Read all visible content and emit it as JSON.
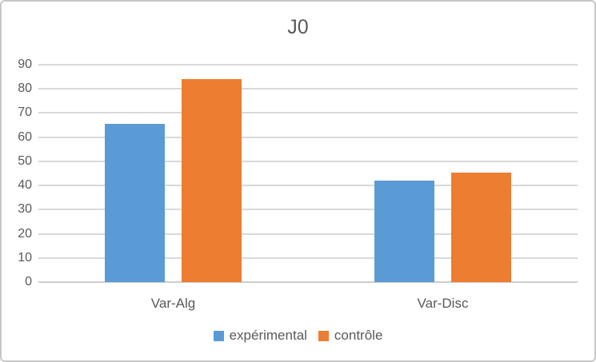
{
  "chart_data": {
    "type": "bar",
    "title": "J0",
    "categories": [
      "Var-Alg",
      "Var-Disc"
    ],
    "series": [
      {
        "name": "expérimental",
        "color": "#5B9BD5",
        "values": [
          65.5,
          42
        ]
      },
      {
        "name": "contrôle",
        "color": "#ED7D31",
        "values": [
          84,
          45.5
        ]
      }
    ],
    "xlabel": "",
    "ylabel": "",
    "ylim": [
      0,
      90
    ],
    "yticks": [
      0,
      10,
      20,
      30,
      40,
      50,
      60,
      70,
      80,
      90
    ],
    "grid": true,
    "legend_position": "bottom"
  },
  "colors": {
    "series_experimental": "#5B9BD5",
    "series_controle": "#ED7D31",
    "gridline": "#D9D9D9",
    "axis_line": "#CDCDCD",
    "text": "#595959",
    "card_border": "#C7C7C7",
    "background": "#FFFFFF"
  }
}
